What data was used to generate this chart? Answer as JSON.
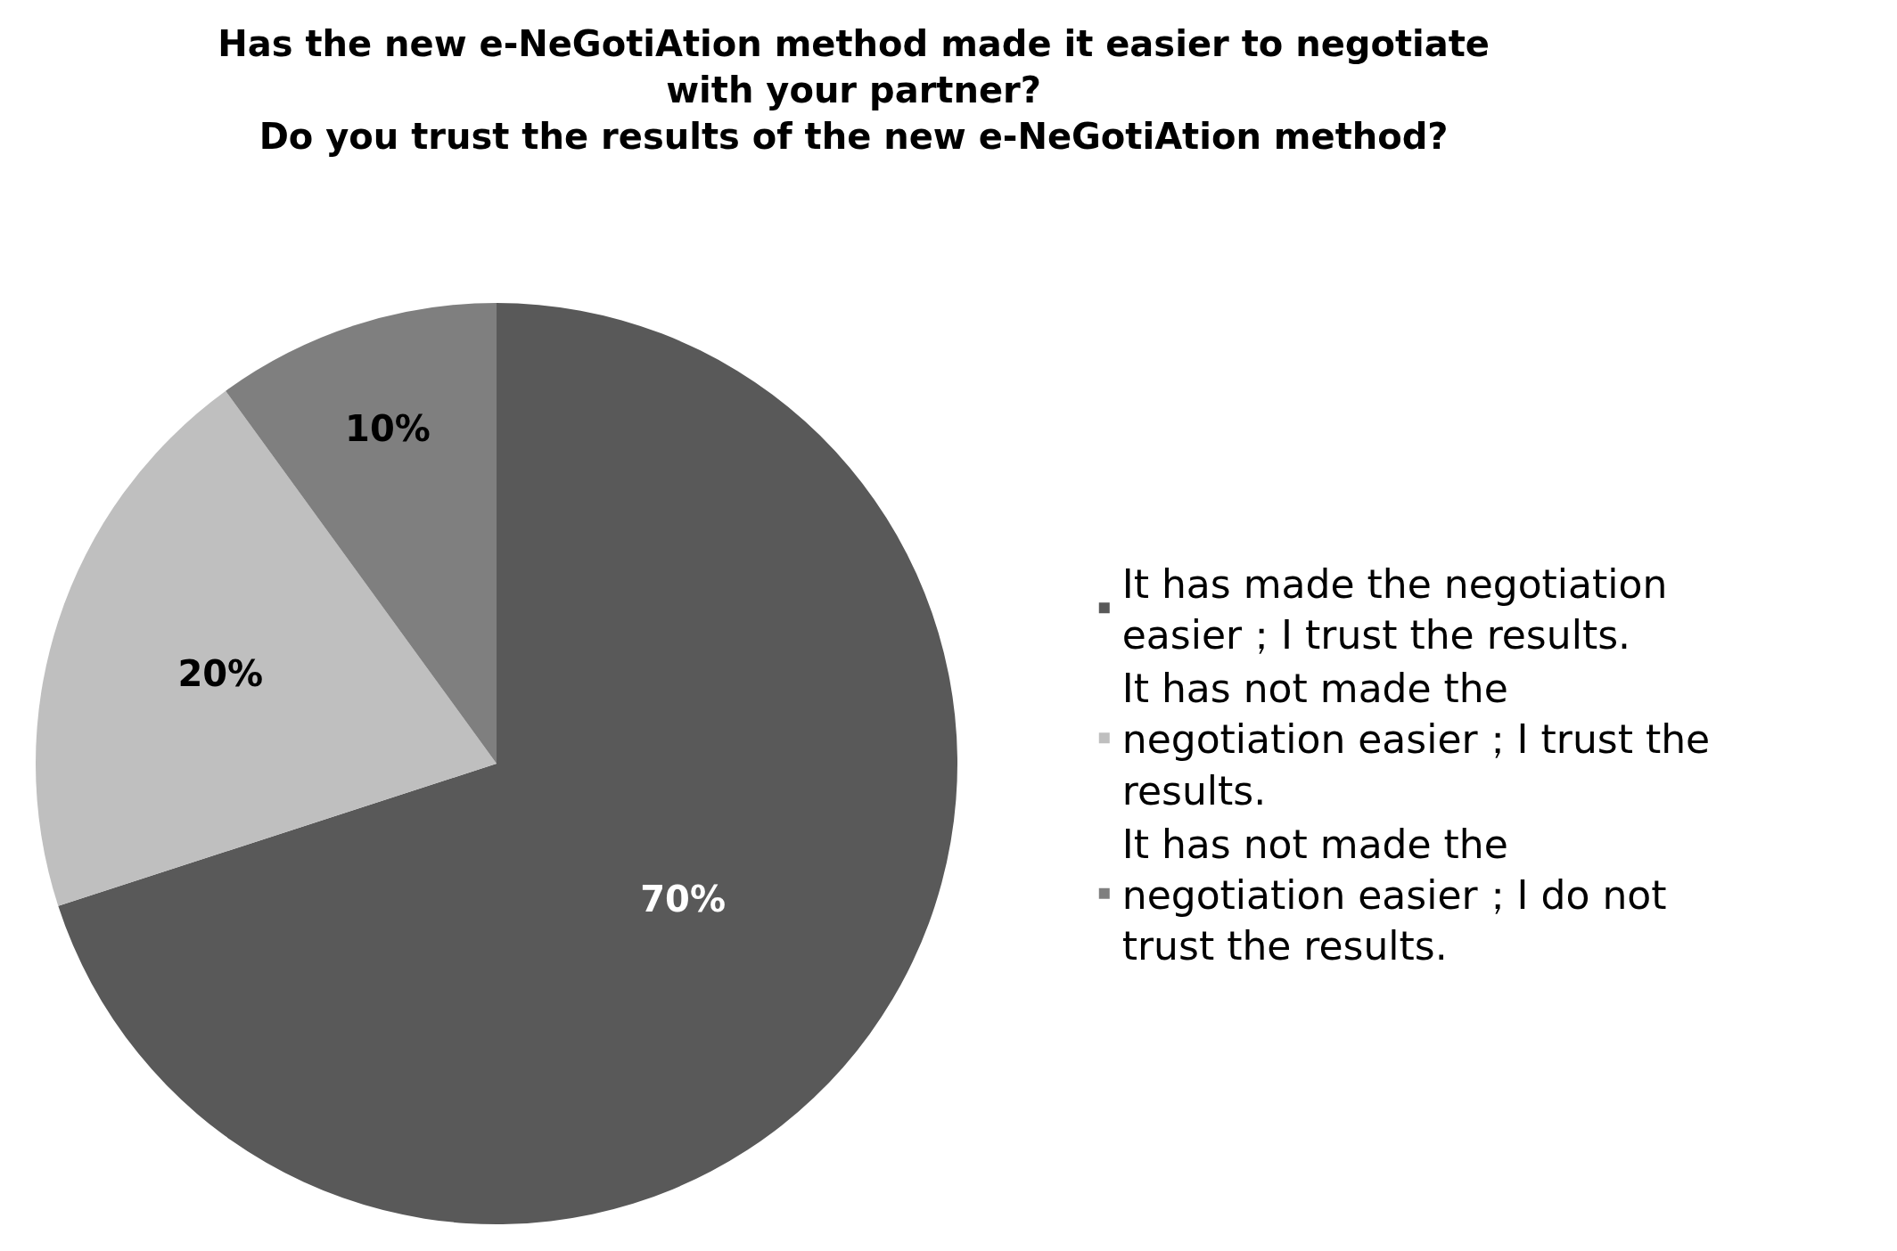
{
  "chart_data": {
    "type": "pie",
    "title": "Has the new e-NeGotiAtion method made it easier to negotiate with your partner?\nDo you trust the results of the new e-NeGotiAtion method?",
    "categories": [
      "It has made the negotiation easier；I trust the results.",
      "It has not made the negotiation easier；I trust the results.",
      "It has not made the negotiation easier；I do not trust the results."
    ],
    "values": [
      70,
      20,
      10
    ],
    "colors": [
      "#595959",
      "#bfbfbf",
      "#7f7f7f"
    ],
    "value_labels": [
      "70%",
      "20%",
      "10%"
    ],
    "legend": "right"
  }
}
